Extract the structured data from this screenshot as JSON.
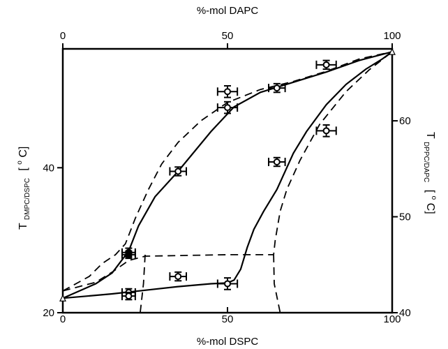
{
  "chart_data": {
    "type": "line",
    "x_bottom": {
      "label": "%-mol DSPC",
      "range": [
        0,
        100
      ],
      "ticks": [
        "0",
        "50",
        "100"
      ]
    },
    "x_top": {
      "label": "%-mol DAPC",
      "range": [
        0,
        100
      ],
      "ticks": [
        "0",
        "50",
        "100"
      ]
    },
    "y_left": {
      "label_main": "T",
      "label_sub": "DMPC/DSPC",
      "label_unit_open": "[",
      "label_unit_sup": "o",
      "label_unit": "C]",
      "range": [
        20,
        56.4
      ],
      "ticks": [
        "20",
        "40"
      ]
    },
    "y_right": {
      "label_main": "T",
      "label_sub": "DPPC/DAPC",
      "label_unit_open": "[",
      "label_unit_sup": "o",
      "label_unit": "C]",
      "range": [
        40,
        67.5
      ],
      "ticks": [
        "40",
        "50",
        "60"
      ]
    },
    "grid": false,
    "series": [
      {
        "style": "solid",
        "points": [
          [
            0,
            22
          ],
          [
            5,
            22.2
          ],
          [
            15,
            22.6
          ],
          [
            25,
            23.1
          ],
          [
            35,
            23.6
          ],
          [
            45,
            24
          ],
          [
            50,
            24.1
          ],
          [
            52,
            24.5
          ],
          [
            54,
            26
          ],
          [
            56,
            29
          ],
          [
            58,
            31.5
          ],
          [
            61,
            34
          ],
          [
            65,
            37
          ],
          [
            70,
            42
          ],
          [
            74,
            45
          ],
          [
            80,
            48.7
          ],
          [
            86,
            51.5
          ],
          [
            92,
            53.6
          ],
          [
            97,
            55
          ],
          [
            100,
            56
          ]
        ]
      },
      {
        "style": "solid",
        "points": [
          [
            0,
            22
          ],
          [
            10,
            24
          ],
          [
            15,
            25.5
          ],
          [
            20,
            28.5
          ],
          [
            23,
            32
          ],
          [
            28,
            36
          ],
          [
            35,
            39.5
          ],
          [
            45,
            45
          ],
          [
            52,
            48.4
          ],
          [
            60,
            50.4
          ],
          [
            70,
            51.8
          ],
          [
            80,
            53.2
          ],
          [
            90,
            54.8
          ],
          [
            100,
            56
          ]
        ]
      },
      {
        "style": "dashed",
        "points": [
          [
            0,
            23
          ],
          [
            8,
            25
          ],
          [
            12,
            26.8
          ],
          [
            16,
            28
          ],
          [
            19,
            29.5
          ],
          [
            22,
            33
          ],
          [
            26,
            37
          ],
          [
            30,
            40.5
          ],
          [
            35,
            43.5
          ],
          [
            42,
            46.5
          ],
          [
            50,
            49
          ],
          [
            60,
            50.8
          ],
          [
            70,
            51.9
          ],
          [
            80,
            53.3
          ],
          [
            90,
            55
          ],
          [
            100,
            56
          ]
        ]
      },
      {
        "style": "dashed",
        "points": [
          [
            0,
            23
          ],
          [
            10,
            24.2
          ],
          [
            15,
            25.6
          ],
          [
            20,
            27.2
          ],
          [
            25,
            27.8
          ],
          [
            50,
            28
          ],
          [
            62,
            28
          ],
          [
            64,
            28
          ],
          [
            64.5,
            30
          ],
          [
            66,
            34
          ],
          [
            68,
            37
          ],
          [
            72,
            41
          ],
          [
            78,
            46
          ],
          [
            86,
            50.5
          ],
          [
            93,
            53.5
          ],
          [
            100,
            56
          ]
        ]
      },
      {
        "style": "dashed",
        "points": [
          [
            25,
            28
          ],
          [
            24.5,
            24
          ],
          [
            23.5,
            20
          ]
        ]
      },
      {
        "style": "dashed",
        "points": [
          [
            64,
            28
          ],
          [
            64.2,
            24
          ],
          [
            66,
            20
          ]
        ]
      }
    ],
    "markers": [
      {
        "x": 0,
        "y": 22,
        "shape": "triangle"
      },
      {
        "x": 100,
        "y": 56,
        "shape": "triangle"
      }
    ],
    "data_points": [
      {
        "x": 20,
        "y": 28.3,
        "xerr": 2,
        "yerr": 0.6,
        "marker": "filled"
      },
      {
        "x": 20,
        "y": 28,
        "xerr": 2,
        "yerr": 0.5,
        "marker": "filled"
      },
      {
        "x": 20,
        "y": 22.8,
        "xerr": 2,
        "yerr": 0.5,
        "marker": "circle"
      },
      {
        "x": 20,
        "y": 22.3,
        "xerr": 2,
        "yerr": 0.5,
        "marker": "circle"
      },
      {
        "x": 35,
        "y": 25,
        "xerr": 2.5,
        "yerr": 0.6,
        "marker": "circle"
      },
      {
        "x": 35,
        "y": 39.5,
        "xerr": 2.5,
        "yerr": 0.6,
        "marker": "circle"
      },
      {
        "x": 50,
        "y": 24,
        "xerr": 3,
        "yerr": 0.8,
        "marker": "circle"
      },
      {
        "x": 50,
        "y": 48.3,
        "xerr": 3,
        "yerr": 0.8,
        "marker": "circle"
      },
      {
        "x": 50,
        "y": 50.5,
        "xerr": 3,
        "yerr": 0.8,
        "marker": "circle"
      },
      {
        "x": 65,
        "y": 51,
        "xerr": 2.5,
        "yerr": 0.6,
        "marker": "circle"
      },
      {
        "x": 65,
        "y": 40.8,
        "xerr": 2.5,
        "yerr": 0.6,
        "marker": "circle"
      },
      {
        "x": 80,
        "y": 54.2,
        "xerr": 3,
        "yerr": 0.6,
        "marker": "circle"
      },
      {
        "x": 80,
        "y": 45.1,
        "xerr": 3,
        "yerr": 0.8,
        "marker": "circle"
      }
    ]
  }
}
